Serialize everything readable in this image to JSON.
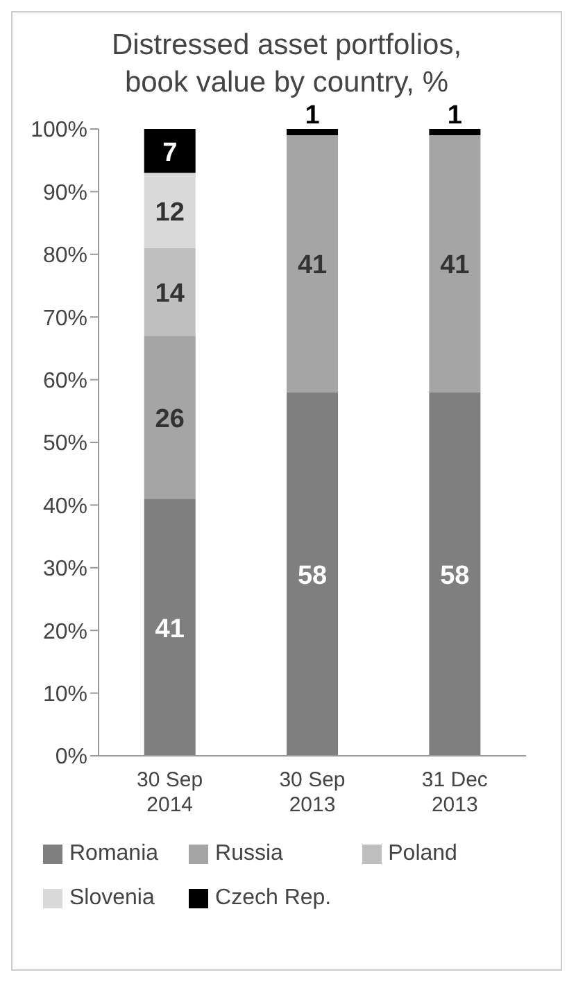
{
  "chart_data": {
    "type": "bar",
    "title": "Distressed asset portfolios,\nbook value by country, %",
    "categories": [
      "30 Sep\n2014",
      "30 Sep\n2013",
      "31 Dec\n2013"
    ],
    "stacked": true,
    "data_labels": true,
    "legend": "bottom",
    "ylim": [
      0,
      100
    ],
    "yticks": [
      {
        "value": 0,
        "label": "0%"
      },
      {
        "value": 10,
        "label": "10%"
      },
      {
        "value": 20,
        "label": "20%"
      },
      {
        "value": 30,
        "label": "30%"
      },
      {
        "value": 40,
        "label": "40%"
      },
      {
        "value": 50,
        "label": "50%"
      },
      {
        "value": 60,
        "label": "60%"
      },
      {
        "value": 70,
        "label": "70%"
      },
      {
        "value": 80,
        "label": "80%"
      },
      {
        "value": 90,
        "label": "90%"
      },
      {
        "value": 100,
        "label": "100%"
      }
    ],
    "series": [
      {
        "name": "Romania",
        "color": "#7f7f7f",
        "values": [
          41,
          58,
          58
        ]
      },
      {
        "name": "Russia",
        "color": "#a5a5a5",
        "values": [
          26,
          41,
          41
        ]
      },
      {
        "name": "Poland",
        "color": "#bfbfbf",
        "values": [
          14,
          null,
          null
        ]
      },
      {
        "name": "Slovenia",
        "color": "#d9d9d9",
        "values": [
          12,
          null,
          null
        ]
      },
      {
        "name": "Czech Rep.",
        "color": "#000000",
        "values": [
          7,
          1,
          1
        ]
      }
    ]
  }
}
